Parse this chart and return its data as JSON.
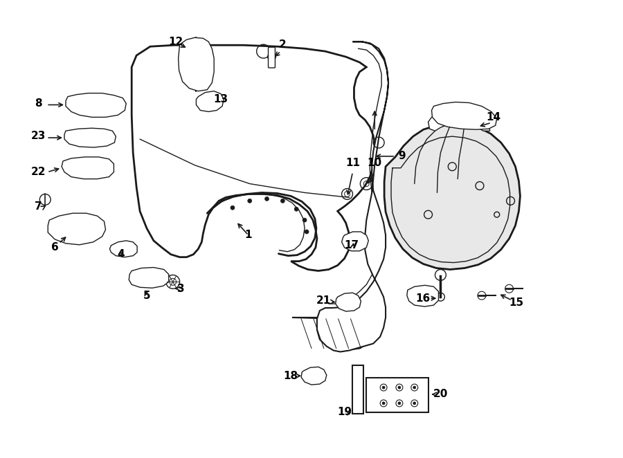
{
  "bg_color": "#ffffff",
  "line_color": "#1a1a1a",
  "text_color": "#000000",
  "fig_width": 9.0,
  "fig_height": 6.62,
  "dpi": 100
}
